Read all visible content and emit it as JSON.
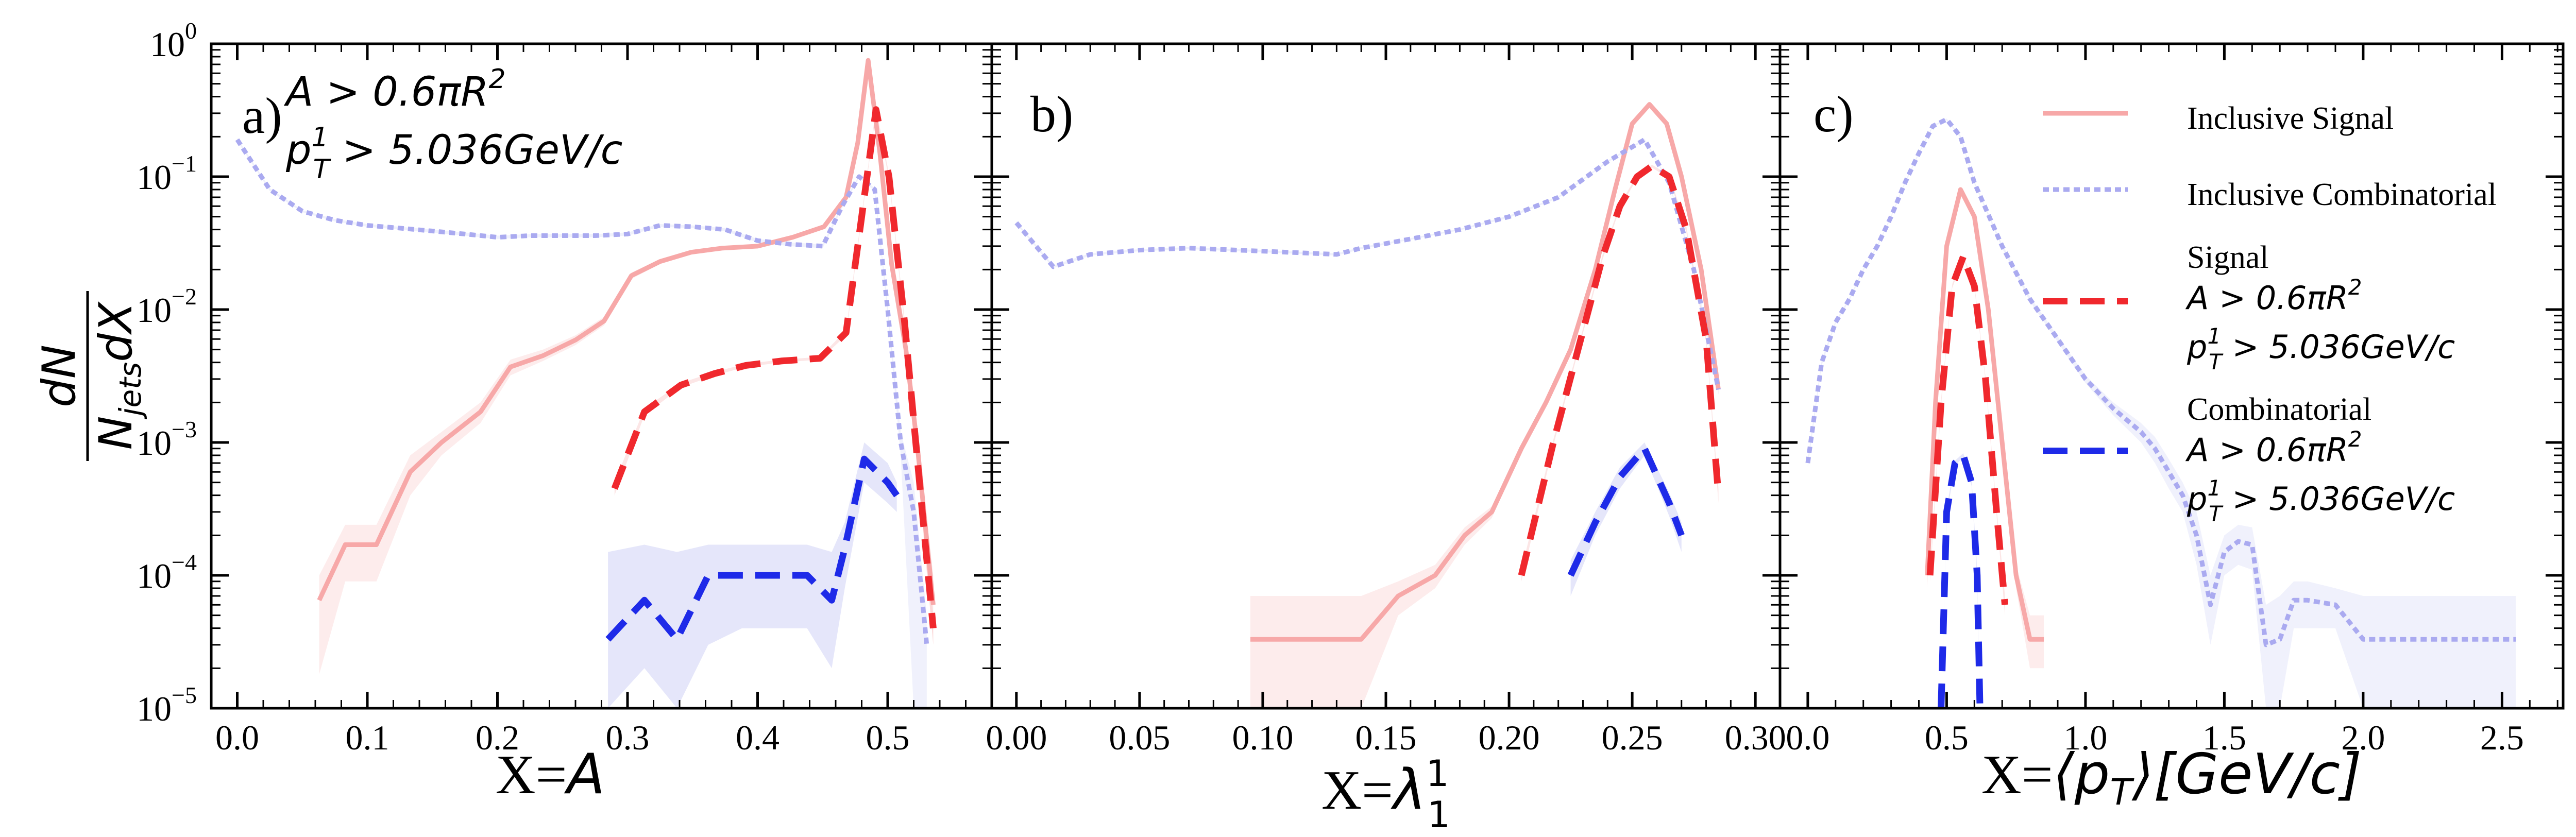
{
  "figure": {
    "ylabel_numerator": "dN",
    "ylabel_denominator": "N",
    "ylabel_denominator_sub": "jets",
    "ylabel_denominator_tail": "dX"
  },
  "legend": {
    "inclusive_signal": "Inclusive Signal",
    "inclusive_combinatorial": "Inclusive Combinatorial",
    "signal_title": "Signal",
    "combinatorial_title": "Combinatorial",
    "cut_area": "A > 0.6πR",
    "cut_area_sup": "2",
    "cut_pt": "p",
    "cut_pt_sup": "1",
    "cut_pt_sub": "T",
    "cut_pt_tail": " > 5.036GeV/c"
  },
  "colors": {
    "inclusive_signal": "#f7a8a8",
    "inclusive_combinatorial": "#aaaaf0",
    "signal": "#f0282d",
    "combinatorial": "#1e2ae8",
    "signal_band": "#f8c8c8",
    "comb_band": "#d4d6f6"
  },
  "chart_data": [
    {
      "type": "line",
      "panel_label": "a)",
      "annotation_area": "A > 0.6πR",
      "annotation_area_sup": "2",
      "annotation_pt": "p",
      "annotation_pt_sup": "1",
      "annotation_pt_sub": "T",
      "annotation_pt_tail": " > 5.036GeV/c",
      "xlabel_prefix": "X=",
      "xlabel_var": "A",
      "xlabel_sub": "",
      "xlabel_sup": "",
      "xlabel_tail": "",
      "xlim": [
        -0.02,
        0.58
      ],
      "ylim": [
        1e-05,
        1
      ],
      "yscale": "log",
      "xticks": [
        0.0,
        0.1,
        0.2,
        0.3,
        0.4,
        0.5
      ],
      "xtick_labels": [
        "0.0",
        "0.1",
        "0.2",
        "0.3",
        "0.4",
        "0.5"
      ],
      "series": [
        {
          "name": "Inclusive Signal",
          "style": "solid",
          "x": [
            0.063,
            0.083,
            0.107,
            0.133,
            0.157,
            0.187,
            0.21,
            0.235,
            0.26,
            0.282,
            0.303,
            0.325,
            0.349,
            0.373,
            0.4,
            0.427,
            0.451,
            0.468,
            0.477,
            0.485,
            0.494,
            0.503,
            0.514,
            0.523,
            0.535
          ],
          "y": [
            6.5e-05,
            0.00017,
            0.00017,
            0.0006,
            0.001,
            0.0017,
            0.0037,
            0.0045,
            0.0059,
            0.0082,
            0.018,
            0.023,
            0.027,
            0.029,
            0.03,
            0.035,
            0.042,
            0.07,
            0.18,
            0.75,
            0.15,
            0.022,
            0.005,
            0.0009,
            6e-05
          ],
          "band_lo": [
            1.8e-05,
            9e-05,
            9e-05,
            0.0004,
            0.0008,
            0.0014,
            0.0032,
            0.0041,
            0.0054,
            0.0076,
            0.017,
            0.022,
            0.026,
            0.028,
            0.029,
            0.034,
            0.041,
            0.068,
            0.175,
            0.73,
            0.14,
            0.02,
            0.0045,
            0.0007,
            3e-05
          ],
          "band_hi": [
            0.0001,
            0.00024,
            0.00024,
            0.0008,
            0.0012,
            0.002,
            0.0042,
            0.005,
            0.0064,
            0.0088,
            0.019,
            0.024,
            0.028,
            0.03,
            0.031,
            0.036,
            0.043,
            0.072,
            0.185,
            0.77,
            0.16,
            0.024,
            0.0055,
            0.0011,
            0.0001
          ]
        },
        {
          "name": "Inclusive Combinatorial",
          "style": "dotted",
          "x": [
            0.0,
            0.025,
            0.05,
            0.075,
            0.1,
            0.125,
            0.15,
            0.175,
            0.2,
            0.225,
            0.25,
            0.275,
            0.3,
            0.325,
            0.35,
            0.375,
            0.4,
            0.425,
            0.45,
            0.465,
            0.478,
            0.49,
            0.5,
            0.51,
            0.52,
            0.53
          ],
          "y": [
            0.19,
            0.08,
            0.055,
            0.047,
            0.043,
            0.041,
            0.039,
            0.037,
            0.035,
            0.036,
            0.036,
            0.036,
            0.037,
            0.043,
            0.042,
            0.04,
            0.033,
            0.031,
            0.03,
            0.06,
            0.1,
            0.08,
            0.01,
            0.001,
            0.0003,
            3e-05
          ],
          "band_lo": [
            0.185,
            0.078,
            0.054,
            0.046,
            0.042,
            0.04,
            0.038,
            0.036,
            0.034,
            0.035,
            0.035,
            0.035,
            0.036,
            0.042,
            0.041,
            0.039,
            0.032,
            0.03,
            0.029,
            0.058,
            0.098,
            0.078,
            0.009,
            0.0008,
            1e-05,
            1e-05
          ],
          "band_hi": [
            0.195,
            0.082,
            0.056,
            0.048,
            0.044,
            0.042,
            0.04,
            0.038,
            0.036,
            0.037,
            0.037,
            0.037,
            0.038,
            0.044,
            0.043,
            0.041,
            0.034,
            0.032,
            0.031,
            0.062,
            0.102,
            0.082,
            0.011,
            0.0012,
            0.0005,
            5e-05
          ]
        },
        {
          "name": "Signal",
          "style": "dashed",
          "x": [
            0.29,
            0.313,
            0.341,
            0.367,
            0.391,
            0.418,
            0.448,
            0.468,
            0.48,
            0.491,
            0.501,
            0.513,
            0.522,
            0.535
          ],
          "y": [
            0.00045,
            0.0017,
            0.0027,
            0.0033,
            0.0038,
            0.0041,
            0.0043,
            0.0067,
            0.05,
            0.32,
            0.1,
            0.008,
            0.0009,
            4e-05
          ],
          "band_lo": [
            0.0004,
            0.0016,
            0.0026,
            0.0032,
            0.0037,
            0.004,
            0.0042,
            0.0064,
            0.048,
            0.31,
            0.095,
            0.0075,
            0.0008,
            3e-05
          ],
          "band_hi": [
            0.0005,
            0.0018,
            0.0028,
            0.0034,
            0.0039,
            0.0042,
            0.0044,
            0.007,
            0.052,
            0.33,
            0.105,
            0.0085,
            0.001,
            5e-05
          ]
        },
        {
          "name": "Combinatorial",
          "style": "dashed",
          "x": [
            0.285,
            0.313,
            0.338,
            0.362,
            0.388,
            0.413,
            0.438,
            0.457,
            0.467,
            0.482,
            0.5,
            0.507
          ],
          "y": [
            3.3e-05,
            6.5e-05,
            3.3e-05,
            0.0001,
            0.0001,
            0.0001,
            0.0001,
            6.5e-05,
            0.00016,
            0.00075,
            0.0005,
            0.0004
          ],
          "band_lo": [
            1e-05,
            2e-05,
            1e-05,
            3e-05,
            4e-05,
            4e-05,
            4e-05,
            2e-05,
            8e-05,
            0.0005,
            0.00035,
            0.0003
          ],
          "band_hi": [
            0.00015,
            0.00017,
            0.00015,
            0.00017,
            0.00017,
            0.00017,
            0.00017,
            0.00015,
            0.00025,
            0.001,
            0.0007,
            0.0005
          ]
        }
      ]
    },
    {
      "type": "line",
      "panel_label": "b)",
      "xlabel_prefix": "X=",
      "xlabel_var": "λ",
      "xlabel_sub": "1",
      "xlabel_sup": "1",
      "xlabel_tail": "",
      "xlim": [
        -0.01,
        0.31
      ],
      "ylim": [
        1e-05,
        1
      ],
      "yscale": "log",
      "xticks": [
        0.0,
        0.05,
        0.1,
        0.15,
        0.2,
        0.25,
        0.3
      ],
      "xtick_labels": [
        "0.00",
        "0.05",
        "0.10",
        "0.15",
        "0.20",
        "0.25",
        "0.30"
      ],
      "series": [
        {
          "name": "Inclusive Signal",
          "style": "solid",
          "x": [
            0.095,
            0.14,
            0.155,
            0.17,
            0.182,
            0.193,
            0.205,
            0.215,
            0.225,
            0.235,
            0.243,
            0.25,
            0.257,
            0.264,
            0.27,
            0.278,
            0.285
          ],
          "y": [
            3.3e-05,
            3.3e-05,
            7e-05,
            0.0001,
            0.0002,
            0.0003,
            0.0009,
            0.002,
            0.005,
            0.02,
            0.08,
            0.25,
            0.35,
            0.25,
            0.1,
            0.02,
            0.0025
          ],
          "band_lo": [
            1e-05,
            1e-05,
            5e-05,
            8e-05,
            0.00017,
            0.00027,
            0.00085,
            0.0019,
            0.0048,
            0.019,
            0.078,
            0.24,
            0.34,
            0.24,
            0.095,
            0.019,
            0.0023
          ],
          "band_hi": [
            7e-05,
            7e-05,
            9e-05,
            0.00012,
            0.00023,
            0.00033,
            0.00095,
            0.0021,
            0.0052,
            0.021,
            0.082,
            0.26,
            0.36,
            0.26,
            0.105,
            0.021,
            0.0027
          ]
        },
        {
          "name": "Inclusive Combinatorial",
          "style": "dotted",
          "x": [
            0.0,
            0.015,
            0.03,
            0.05,
            0.07,
            0.09,
            0.11,
            0.13,
            0.14,
            0.16,
            0.18,
            0.2,
            0.22,
            0.24,
            0.255,
            0.265,
            0.275,
            0.285
          ],
          "y": [
            0.045,
            0.021,
            0.026,
            0.028,
            0.029,
            0.028,
            0.027,
            0.026,
            0.029,
            0.034,
            0.04,
            0.05,
            0.07,
            0.13,
            0.19,
            0.09,
            0.02,
            0.0025
          ],
          "band_lo": [
            0.044,
            0.0205,
            0.0255,
            0.0275,
            0.0285,
            0.0275,
            0.0265,
            0.0255,
            0.0285,
            0.0335,
            0.0395,
            0.049,
            0.069,
            0.128,
            0.187,
            0.088,
            0.019,
            0.0023
          ],
          "band_hi": [
            0.046,
            0.0215,
            0.0265,
            0.0285,
            0.0295,
            0.0285,
            0.0275,
            0.0265,
            0.0295,
            0.0345,
            0.0405,
            0.051,
            0.071,
            0.132,
            0.193,
            0.092,
            0.021,
            0.0027
          ]
        },
        {
          "name": "Signal",
          "style": "dashed",
          "x": [
            0.205,
            0.218,
            0.228,
            0.238,
            0.245,
            0.252,
            0.258,
            0.265,
            0.272,
            0.28,
            0.285
          ],
          "y": [
            0.0001,
            0.001,
            0.005,
            0.025,
            0.06,
            0.1,
            0.12,
            0.1,
            0.04,
            0.006,
            0.0004
          ],
          "band_lo": [
            9e-05,
            0.00095,
            0.0048,
            0.024,
            0.058,
            0.097,
            0.117,
            0.097,
            0.038,
            0.0057,
            0.00035
          ],
          "band_hi": [
            0.00011,
            0.00105,
            0.0052,
            0.026,
            0.062,
            0.103,
            0.123,
            0.103,
            0.042,
            0.0063,
            0.00045
          ]
        },
        {
          "name": "Combinatorial",
          "style": "dashed",
          "x": [
            0.225,
            0.235,
            0.245,
            0.255,
            0.265,
            0.27
          ],
          "y": [
            0.0001,
            0.00025,
            0.00055,
            0.0009,
            0.00035,
            0.0002
          ],
          "band_lo": [
            7e-05,
            0.0002,
            0.00045,
            0.0008,
            0.00028,
            0.00015
          ],
          "band_hi": [
            0.00013,
            0.0003,
            0.00065,
            0.001,
            0.00042,
            0.00025
          ]
        }
      ]
    },
    {
      "type": "line",
      "panel_label": "c)",
      "xlabel_prefix": "X=",
      "xlabel_var": "⟨p",
      "xlabel_sub": "T",
      "xlabel_sup": "",
      "xlabel_tail": "⟩[GeV/c]",
      "xlim": [
        -0.1,
        2.72
      ],
      "ylim": [
        1e-05,
        1
      ],
      "yscale": "log",
      "xticks": [
        0.0,
        0.5,
        1.0,
        1.5,
        2.0,
        2.5
      ],
      "xtick_labels": [
        "0.0",
        "0.5",
        "1.0",
        "1.5",
        "2.0",
        "2.5"
      ],
      "series": [
        {
          "name": "Inclusive Signal",
          "style": "solid",
          "x": [
            0.43,
            0.46,
            0.5,
            0.55,
            0.6,
            0.65,
            0.7,
            0.75,
            0.8,
            0.85
          ],
          "y": [
            0.0001,
            0.002,
            0.03,
            0.08,
            0.05,
            0.01,
            0.001,
            0.0001,
            3.3e-05,
            3.3e-05
          ],
          "band_lo": [
            8e-05,
            0.0019,
            0.029,
            0.078,
            0.048,
            0.0095,
            0.0009,
            8e-05,
            2e-05,
            2e-05
          ],
          "band_hi": [
            0.00012,
            0.0021,
            0.031,
            0.082,
            0.052,
            0.0105,
            0.0011,
            0.00012,
            5e-05,
            5e-05
          ]
        },
        {
          "name": "Inclusive Combinatorial",
          "style": "dotted",
          "x": [
            0.0,
            0.05,
            0.1,
            0.15,
            0.2,
            0.25,
            0.3,
            0.35,
            0.4,
            0.45,
            0.5,
            0.55,
            0.6,
            0.7,
            0.8,
            0.9,
            1.0,
            1.1,
            1.2,
            1.25,
            1.3,
            1.35,
            1.4,
            1.45,
            1.5,
            1.55,
            1.6,
            1.65,
            1.7,
            1.75,
            1.8,
            1.9,
            2.0,
            2.2,
            2.4,
            2.55
          ],
          "y": [
            0.0007,
            0.004,
            0.008,
            0.012,
            0.02,
            0.03,
            0.05,
            0.09,
            0.15,
            0.24,
            0.27,
            0.2,
            0.09,
            0.03,
            0.012,
            0.006,
            0.003,
            0.0018,
            0.0012,
            0.0009,
            0.0006,
            0.0004,
            0.0002,
            6e-05,
            0.00015,
            0.00018,
            0.00017,
            3e-05,
            3.3e-05,
            6.5e-05,
            6.5e-05,
            6e-05,
            3.3e-05,
            3.3e-05,
            3.3e-05,
            3.3e-05
          ],
          "band_lo": [
            0.00065,
            0.0038,
            0.0078,
            0.0117,
            0.0196,
            0.0295,
            0.049,
            0.088,
            0.147,
            0.236,
            0.266,
            0.196,
            0.088,
            0.029,
            0.0115,
            0.0057,
            0.0028,
            0.0016,
            0.001,
            0.0007,
            0.00045,
            0.0003,
            0.00012,
            3e-05,
            0.0001,
            0.00012,
            0.00011,
            1e-05,
            1e-05,
            4e-05,
            4e-05,
            4e-05,
            1e-05,
            1e-05,
            1e-05,
            1e-05
          ],
          "band_hi": [
            0.00075,
            0.0042,
            0.0082,
            0.0123,
            0.0204,
            0.0305,
            0.051,
            0.092,
            0.153,
            0.244,
            0.274,
            0.204,
            0.092,
            0.031,
            0.0125,
            0.0063,
            0.0032,
            0.002,
            0.0014,
            0.0011,
            0.00075,
            0.0005,
            0.0003,
            0.0001,
            0.0002,
            0.00024,
            0.00023,
            6e-05,
            7e-05,
            9e-05,
            9e-05,
            8e-05,
            7e-05,
            7e-05,
            7e-05,
            7e-05
          ]
        },
        {
          "name": "Signal",
          "style": "dashed",
          "x": [
            0.44,
            0.48,
            0.52,
            0.56,
            0.6,
            0.64,
            0.68,
            0.71
          ],
          "y": [
            0.0001,
            0.002,
            0.015,
            0.025,
            0.015,
            0.003,
            0.0003,
            6e-05
          ],
          "band_lo": [
            9e-05,
            0.0019,
            0.0145,
            0.0245,
            0.0145,
            0.0029,
            0.00028,
            5e-05
          ],
          "band_hi": [
            0.00011,
            0.0021,
            0.0155,
            0.0255,
            0.0155,
            0.0031,
            0.00032,
            7e-05
          ]
        },
        {
          "name": "Combinatorial",
          "style": "dashed",
          "x": [
            0.48,
            0.5,
            0.53,
            0.56,
            0.59,
            0.61,
            0.62
          ],
          "y": [
            1e-05,
            0.0003,
            0.0007,
            0.0008,
            0.0005,
            0.0001,
            1e-05
          ],
          "band_lo": [
            1e-05,
            0.00028,
            0.00067,
            0.00077,
            0.00047,
            9e-05,
            1e-05
          ],
          "band_hi": [
            1e-05,
            0.00032,
            0.00073,
            0.00083,
            0.00053,
            0.00011,
            1e-05
          ]
        }
      ]
    }
  ]
}
